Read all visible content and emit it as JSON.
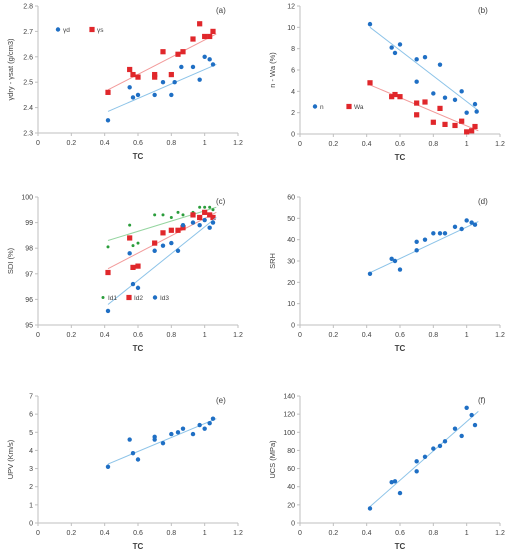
{
  "figure": {
    "point_colors": {
      "blue": "#1f6fc4",
      "red": "#e0272b",
      "green": "#2a9d3b"
    },
    "trend_colors": {
      "blue": "#8cc3e8",
      "red": "#f29a9a",
      "green": "#95d5a0"
    },
    "axis_color": "#bfbfbf",
    "text_color": "#404040"
  },
  "chart_data": [
    {
      "panel": "(a)",
      "type": "scatter",
      "xlabel": "TC",
      "ylabel": "γdry - γsat (g/cm3)",
      "xlim": [
        0,
        1.2
      ],
      "ylim": [
        2.3,
        2.8
      ],
      "xticks": [
        "0",
        "0.2",
        "0.4",
        "0.6",
        "0.8",
        "1",
        "1.2"
      ],
      "yticks": [
        "2.3",
        "2.4",
        "2.5",
        "2.6",
        "2.7",
        "2.8"
      ],
      "legend": [
        "γd",
        "γs"
      ],
      "legend_position": "top-left",
      "series": [
        {
          "name": "γd",
          "color": "blue",
          "marker": "circle",
          "trend": [
            [
              0.42,
              2.385
            ],
            [
              1.07,
              2.57
            ]
          ],
          "points": [
            [
              0.42,
              2.35
            ],
            [
              0.55,
              2.48
            ],
            [
              0.57,
              2.44
            ],
            [
              0.6,
              2.45
            ],
            [
              0.7,
              2.45
            ],
            [
              0.75,
              2.5
            ],
            [
              0.8,
              2.45
            ],
            [
              0.82,
              2.5
            ],
            [
              0.86,
              2.56
            ],
            [
              0.93,
              2.56
            ],
            [
              0.97,
              2.51
            ],
            [
              1.0,
              2.6
            ],
            [
              1.03,
              2.59
            ],
            [
              1.05,
              2.57
            ]
          ]
        },
        {
          "name": "γs",
          "color": "red",
          "marker": "square",
          "trend": [
            [
              0.42,
              2.47
            ],
            [
              1.07,
              2.69
            ]
          ],
          "points": [
            [
              0.42,
              2.46
            ],
            [
              0.55,
              2.55
            ],
            [
              0.57,
              2.53
            ],
            [
              0.6,
              2.52
            ],
            [
              0.7,
              2.53
            ],
            [
              0.7,
              2.52
            ],
            [
              0.75,
              2.62
            ],
            [
              0.8,
              2.53
            ],
            [
              0.84,
              2.61
            ],
            [
              0.87,
              2.62
            ],
            [
              0.93,
              2.67
            ],
            [
              0.97,
              2.73
            ],
            [
              1.0,
              2.68
            ],
            [
              1.03,
              2.68
            ],
            [
              1.05,
              2.7
            ]
          ]
        }
      ]
    },
    {
      "panel": "(b)",
      "type": "scatter",
      "xlabel": "TC",
      "ylabel": "n - Wa (%)",
      "xlim": [
        0,
        1.2
      ],
      "ylim": [
        0,
        12
      ],
      "xticks": [
        "0",
        "0.2",
        "0.4",
        "0.6",
        "0.8",
        "1",
        "1.2"
      ],
      "yticks": [
        "0",
        "2",
        "4",
        "6",
        "8",
        "10",
        "12"
      ],
      "legend": [
        "n",
        "Wa"
      ],
      "legend_position": "bottom-left",
      "series": [
        {
          "name": "n",
          "color": "blue",
          "marker": "circle",
          "trend": [
            [
              0.42,
              10.0
            ],
            [
              1.07,
              2.2
            ]
          ],
          "points": [
            [
              0.42,
              10.3
            ],
            [
              0.55,
              8.1
            ],
            [
              0.57,
              7.6
            ],
            [
              0.6,
              8.4
            ],
            [
              0.7,
              7.0
            ],
            [
              0.7,
              4.9
            ],
            [
              0.75,
              7.2
            ],
            [
              0.8,
              3.8
            ],
            [
              0.84,
              6.5
            ],
            [
              0.87,
              3.4
            ],
            [
              0.93,
              3.2
            ],
            [
              0.97,
              4.0
            ],
            [
              1.0,
              2.0
            ],
            [
              1.05,
              2.8
            ],
            [
              1.06,
              2.1
            ]
          ]
        },
        {
          "name": "Wa",
          "color": "red",
          "marker": "square",
          "trend": [
            [
              0.42,
              4.6
            ],
            [
              1.07,
              0.3
            ]
          ],
          "points": [
            [
              0.42,
              4.8
            ],
            [
              0.55,
              3.5
            ],
            [
              0.57,
              3.7
            ],
            [
              0.6,
              3.5
            ],
            [
              0.7,
              2.9
            ],
            [
              0.7,
              1.8
            ],
            [
              0.75,
              3.0
            ],
            [
              0.8,
              1.1
            ],
            [
              0.84,
              2.4
            ],
            [
              0.87,
              0.9
            ],
            [
              0.93,
              0.8
            ],
            [
              0.97,
              1.2
            ],
            [
              1.0,
              0.2
            ],
            [
              1.03,
              0.3
            ],
            [
              1.05,
              0.7
            ]
          ]
        }
      ]
    },
    {
      "panel": "(c)",
      "type": "scatter",
      "xlabel": "TC",
      "ylabel": "SDI (%)",
      "xlim": [
        0,
        1.2
      ],
      "ylim": [
        95,
        100
      ],
      "xticks": [
        "0",
        "0.2",
        "0.4",
        "0.6",
        "0.8",
        "1",
        "1.2"
      ],
      "yticks": [
        "95",
        "96",
        "97",
        "98",
        "99",
        "100"
      ],
      "legend": [
        "Id1",
        "Id2",
        "Id3"
      ],
      "legend_position": "bottom",
      "series": [
        {
          "name": "Id1",
          "color": "green",
          "marker": "dot",
          "trend": [
            [
              0.42,
              98.3
            ],
            [
              1.07,
              99.6
            ]
          ],
          "points": [
            [
              0.42,
              98.05
            ],
            [
              0.55,
              98.9
            ],
            [
              0.57,
              98.1
            ],
            [
              0.6,
              98.2
            ],
            [
              0.7,
              99.3
            ],
            [
              0.75,
              99.3
            ],
            [
              0.8,
              99.2
            ],
            [
              0.84,
              99.4
            ],
            [
              0.87,
              99.3
            ],
            [
              0.93,
              99.4
            ],
            [
              0.97,
              99.6
            ],
            [
              1.0,
              99.6
            ],
            [
              1.03,
              99.6
            ],
            [
              1.05,
              99.5
            ]
          ]
        },
        {
          "name": "Id2",
          "color": "red",
          "marker": "square",
          "trend": [
            [
              0.42,
              97.2
            ],
            [
              1.07,
              99.4
            ]
          ],
          "points": [
            [
              0.42,
              97.05
            ],
            [
              0.55,
              98.4
            ],
            [
              0.57,
              97.25
            ],
            [
              0.6,
              97.3
            ],
            [
              0.7,
              98.2
            ],
            [
              0.75,
              98.6
            ],
            [
              0.8,
              98.7
            ],
            [
              0.84,
              98.7
            ],
            [
              0.87,
              98.8
            ],
            [
              0.93,
              99.3
            ],
            [
              0.97,
              99.2
            ],
            [
              1.0,
              99.4
            ],
            [
              1.03,
              99.3
            ],
            [
              1.05,
              99.2
            ]
          ]
        },
        {
          "name": "Id3",
          "color": "blue",
          "marker": "circle",
          "trend": [
            [
              0.42,
              95.8
            ],
            [
              1.07,
              99.2
            ]
          ],
          "points": [
            [
              0.42,
              95.55
            ],
            [
              0.55,
              97.8
            ],
            [
              0.57,
              96.6
            ],
            [
              0.6,
              96.45
            ],
            [
              0.7,
              97.9
            ],
            [
              0.75,
              98.1
            ],
            [
              0.8,
              98.2
            ],
            [
              0.84,
              97.9
            ],
            [
              0.87,
              98.9
            ],
            [
              0.93,
              99.0
            ],
            [
              0.97,
              98.9
            ],
            [
              1.0,
              99.1
            ],
            [
              1.03,
              98.8
            ],
            [
              1.05,
              99.0
            ]
          ]
        }
      ]
    },
    {
      "panel": "(d)",
      "type": "scatter",
      "xlabel": "TC",
      "ylabel": "SRH",
      "xlim": [
        0,
        1.2
      ],
      "ylim": [
        0,
        60
      ],
      "xticks": [
        "0",
        "0.2",
        "0.4",
        "0.6",
        "0.8",
        "1",
        "1.2"
      ],
      "yticks": [
        "0",
        "10",
        "20",
        "30",
        "40",
        "50",
        "60"
      ],
      "series": [
        {
          "color": "blue",
          "marker": "circle",
          "trend": [
            [
              0.42,
              24.5
            ],
            [
              1.07,
              48.5
            ]
          ],
          "points": [
            [
              0.42,
              24
            ],
            [
              0.55,
              31
            ],
            [
              0.57,
              30
            ],
            [
              0.6,
              26
            ],
            [
              0.7,
              35
            ],
            [
              0.7,
              39
            ],
            [
              0.75,
              40
            ],
            [
              0.8,
              43
            ],
            [
              0.84,
              43
            ],
            [
              0.87,
              43
            ],
            [
              0.93,
              46
            ],
            [
              0.97,
              45
            ],
            [
              1.0,
              49
            ],
            [
              1.03,
              48
            ],
            [
              1.05,
              47
            ]
          ]
        }
      ]
    },
    {
      "panel": "(e)",
      "type": "scatter",
      "xlabel": "TC",
      "ylabel": "UPV (Km/s)",
      "xlim": [
        0,
        1.2
      ],
      "ylim": [
        0,
        7
      ],
      "xticks": [
        "0",
        "0.2",
        "0.4",
        "0.6",
        "0.8",
        "1",
        "1.2"
      ],
      "yticks": [
        "0",
        "1",
        "2",
        "3",
        "4",
        "5",
        "6",
        "7"
      ],
      "series": [
        {
          "color": "blue",
          "marker": "circle",
          "trend": [
            [
              0.42,
              3.25
            ],
            [
              1.07,
              5.75
            ]
          ],
          "points": [
            [
              0.42,
              3.1
            ],
            [
              0.55,
              4.6
            ],
            [
              0.57,
              3.85
            ],
            [
              0.6,
              3.5
            ],
            [
              0.7,
              4.6
            ],
            [
              0.7,
              4.75
            ],
            [
              0.75,
              4.4
            ],
            [
              0.8,
              4.9
            ],
            [
              0.84,
              5.0
            ],
            [
              0.87,
              5.2
            ],
            [
              0.93,
              4.9
            ],
            [
              0.97,
              5.4
            ],
            [
              1.0,
              5.2
            ],
            [
              1.03,
              5.5
            ],
            [
              1.05,
              5.75
            ]
          ]
        }
      ]
    },
    {
      "panel": "(f)",
      "type": "scatter",
      "xlabel": "TC",
      "ylabel": "UCS (MPa)",
      "xlim": [
        0,
        1.2
      ],
      "ylim": [
        0,
        140
      ],
      "xticks": [
        "0",
        "0.2",
        "0.4",
        "0.6",
        "0.8",
        "1",
        "1.2"
      ],
      "yticks": [
        "0",
        "20",
        "40",
        "60",
        "80",
        "100",
        "120",
        "140"
      ],
      "series": [
        {
          "color": "blue",
          "marker": "circle",
          "trend": [
            [
              0.42,
              18
            ],
            [
              1.07,
              123
            ]
          ],
          "points": [
            [
              0.42,
              16
            ],
            [
              0.55,
              45
            ],
            [
              0.57,
              46
            ],
            [
              0.6,
              33
            ],
            [
              0.7,
              57
            ],
            [
              0.7,
              68
            ],
            [
              0.75,
              73
            ],
            [
              0.8,
              82
            ],
            [
              0.84,
              85
            ],
            [
              0.87,
              90
            ],
            [
              0.93,
              104
            ],
            [
              0.97,
              96
            ],
            [
              1.0,
              127
            ],
            [
              1.03,
              119
            ],
            [
              1.05,
              108
            ]
          ]
        }
      ]
    }
  ]
}
